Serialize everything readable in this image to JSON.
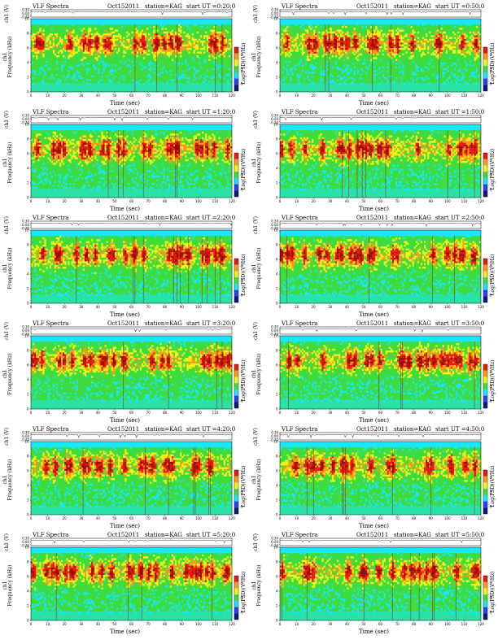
{
  "page": {
    "heading_left": "VLF Spectra",
    "date": "Oct152011",
    "station": "station=KAG",
    "start_prefix": "start  UT =",
    "ch_ylabel": "ch1 (V)",
    "freq_ylabel_line1": "ch1",
    "freq_ylabel_line2": "Frequency  (kHz)",
    "xlabel": "Time  (sec)",
    "cbar_label": "Log(PSD)(V²/Hz)"
  },
  "panels": [
    {
      "start_ut": "0:20:0"
    },
    {
      "start_ut": "0:50:0"
    },
    {
      "start_ut": "1:20:0"
    },
    {
      "start_ut": "1:50:0"
    },
    {
      "start_ut": "2:20:0"
    },
    {
      "start_ut": "2:50:0"
    },
    {
      "start_ut": "3:20:0"
    },
    {
      "start_ut": "3:50:0"
    },
    {
      "start_ut": "4:20:0"
    },
    {
      "start_ut": "4:50:0"
    },
    {
      "start_ut": "5:20:0"
    },
    {
      "start_ut": "5:50:0"
    }
  ],
  "colors": {
    "cyan": "#19e6ff",
    "green": "#3fdc3f",
    "yellow": "#f5f514",
    "orange": "#ff9a1a",
    "red": "#e81a12",
    "darkred": "#9a0a0a",
    "blue": "#2a40ff",
    "navy": "#0a1a80"
  },
  "chart_data": {
    "type": "heatmap",
    "x_ticks": [
      "0",
      "10",
      "20",
      "30",
      "40",
      "50",
      "60",
      "70",
      "80",
      "90",
      "100",
      "110",
      "120"
    ],
    "xlim": [
      0,
      120
    ],
    "freq_ticks": [
      "0",
      "2",
      "4",
      "6",
      "8",
      "10"
    ],
    "ylim": [
      0,
      10
    ],
    "ch_ticks": [
      "0.30",
      "0.00",
      "-0.30"
    ],
    "ch_ylim": [
      -0.3,
      0.3
    ],
    "cbar_ticks": [
      "-5",
      "-7",
      "-9"
    ]
  }
}
